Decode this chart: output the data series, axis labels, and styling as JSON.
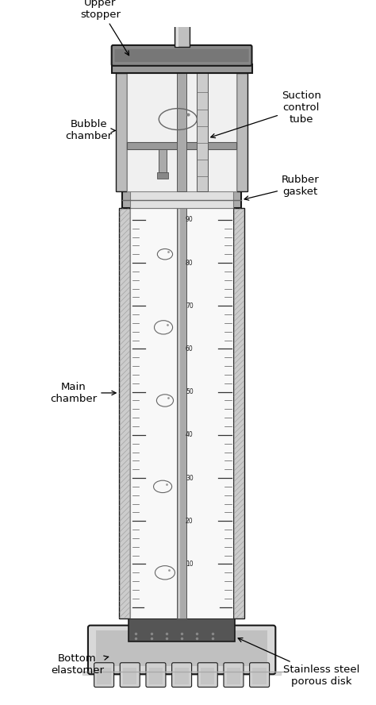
{
  "background_color": "#ffffff",
  "figsize": [
    4.74,
    8.88
  ],
  "dpi": 100,
  "labels": {
    "upper_stopper": "Upper\nstopper",
    "bubble_chamber": "Bubble\nchamber",
    "suction_control_tube": "Suction\ncontrol\ntube",
    "rubber_gasket": "Rubber\ngasket",
    "main_chamber": "Main\nchamber",
    "stainless_steel": "Stainless steel\nporous disk",
    "bottom_elastomer": "Bottom\nelastomer"
  },
  "tick_values": [
    10,
    20,
    30,
    40,
    50,
    60,
    70,
    80,
    90
  ],
  "colors": {
    "outline": "#1a1a1a",
    "dark_gray": "#444444",
    "med_gray": "#888888",
    "light_gray": "#cccccc",
    "very_light": "#f0f0f0",
    "hatch": "#777777",
    "white": "#ffffff"
  }
}
